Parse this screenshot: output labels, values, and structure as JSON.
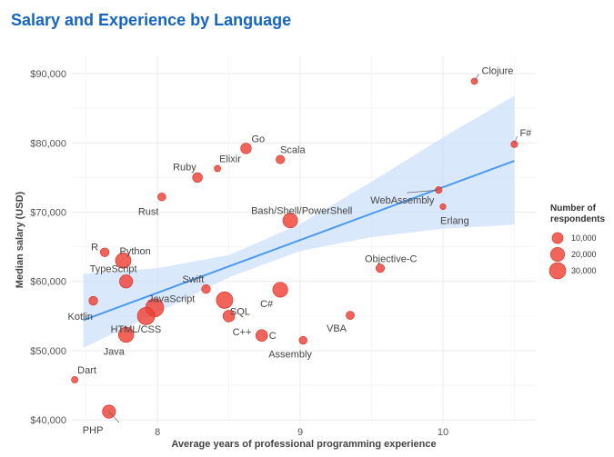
{
  "chart_data": {
    "type": "scatter",
    "title": "Salary and Experience by Language",
    "xlabel": "Average years of professional programming experience",
    "ylabel": "Median salary (USD)",
    "xlim": [
      7.4,
      10.65
    ],
    "ylim": [
      39500,
      92500
    ],
    "x_ticks": [
      {
        "value": 8,
        "label": "8"
      },
      {
        "value": 9,
        "label": "9"
      },
      {
        "value": 10,
        "label": "10"
      }
    ],
    "y_ticks": [
      {
        "value": 40000,
        "label": "$40,000"
      },
      {
        "value": 50000,
        "label": "$50,000"
      },
      {
        "value": 60000,
        "label": "$60,000"
      },
      {
        "value": 70000,
        "label": "$70,000"
      },
      {
        "value": 80000,
        "label": "$80,000"
      },
      {
        "value": 90000,
        "label": "$90,000"
      }
    ],
    "grid": true,
    "point_color": "#ef4136",
    "trend": {
      "color": "#4a9af0",
      "band_color": "#c6dcfa",
      "start": [
        7.48,
        54400
      ],
      "end": [
        10.5,
        77400
      ],
      "band": [
        [
          7.48,
          50400,
          61100
        ],
        [
          8.0,
          55500,
          61900
        ],
        [
          8.5,
          60600,
          63800
        ],
        [
          9.0,
          64400,
          68300
        ],
        [
          9.5,
          66400,
          74400
        ],
        [
          10.0,
          67600,
          80800
        ],
        [
          10.5,
          68200,
          86800
        ]
      ]
    },
    "points": [
      {
        "name": "Clojure",
        "x": 10.22,
        "y": 88900,
        "n": 1500
      },
      {
        "name": "F#",
        "x": 10.5,
        "y": 79800,
        "n": 1800
      },
      {
        "name": "Go",
        "x": 8.62,
        "y": 79200,
        "n": 9000
      },
      {
        "name": "Scala",
        "x": 8.86,
        "y": 77600,
        "n": 4500
      },
      {
        "name": "Elixir",
        "x": 8.42,
        "y": 76300,
        "n": 1500
      },
      {
        "name": "Ruby",
        "x": 8.28,
        "y": 75000,
        "n": 7000
      },
      {
        "name": "Rust",
        "x": 8.03,
        "y": 72200,
        "n": 3500
      },
      {
        "name": "WebAssembly",
        "x": 9.97,
        "y": 73200,
        "n": 1800
      },
      {
        "name": "Erlang",
        "x": 10.0,
        "y": 70800,
        "n": 1000
      },
      {
        "name": "Bash/Shell/PowerShell",
        "x": 8.93,
        "y": 68800,
        "n": 23000
      },
      {
        "name": "R",
        "x": 7.63,
        "y": 64200,
        "n": 5000
      },
      {
        "name": "Python",
        "x": 7.76,
        "y": 63000,
        "n": 26000
      },
      {
        "name": "Objective-C",
        "x": 9.56,
        "y": 61900,
        "n": 4500
      },
      {
        "name": "TypeScript",
        "x": 7.78,
        "y": 60000,
        "n": 17000
      },
      {
        "name": "Swift",
        "x": 8.34,
        "y": 58900,
        "n": 5000
      },
      {
        "name": "C#",
        "x": 8.86,
        "y": 58800,
        "n": 24000
      },
      {
        "name": "Kotlin",
        "x": 7.55,
        "y": 57200,
        "n": 5000
      },
      {
        "name": "JavaScript",
        "x": 7.98,
        "y": 56200,
        "n": 39000
      },
      {
        "name": "SQL",
        "x": 8.47,
        "y": 57300,
        "n": 31000
      },
      {
        "name": "HTML/CSS",
        "x": 7.92,
        "y": 55000,
        "n": 35000
      },
      {
        "name": "C++",
        "x": 8.5,
        "y": 55000,
        "n": 12000
      },
      {
        "name": "VBA",
        "x": 9.35,
        "y": 55100,
        "n": 4000
      },
      {
        "name": "Java",
        "x": 7.78,
        "y": 52300,
        "n": 25000
      },
      {
        "name": "C",
        "x": 8.73,
        "y": 52200,
        "n": 12000
      },
      {
        "name": "Assembly",
        "x": 9.02,
        "y": 51500,
        "n": 3500
      },
      {
        "name": "Dart",
        "x": 7.42,
        "y": 45800,
        "n": 1500
      },
      {
        "name": "PHP",
        "x": 7.66,
        "y": 41200,
        "n": 17000
      }
    ],
    "size_legend": {
      "title_lines": [
        "Number of",
        "respondents"
      ],
      "items": [
        {
          "value": 10000,
          "label": "10,000"
        },
        {
          "value": 20000,
          "label": "20,000"
        },
        {
          "value": 30000,
          "label": "30,000"
        }
      ]
    }
  }
}
